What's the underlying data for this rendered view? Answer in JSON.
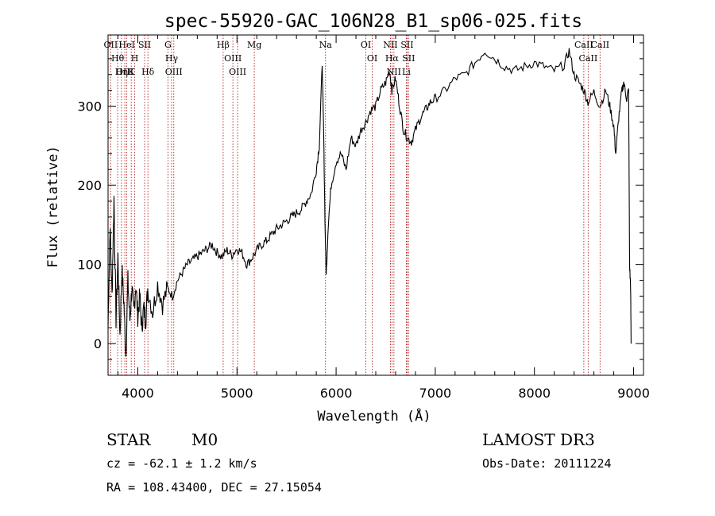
{
  "chart_data": {
    "type": "line",
    "title": "spec-55920-GAC_106N28_B1_sp06-025.fits",
    "xlabel": "Wavelength (Å)",
    "ylabel": "Flux (relative)",
    "xlim": [
      3700,
      9100
    ],
    "ylim": [
      -40,
      390
    ],
    "xticks": [
      4000,
      5000,
      6000,
      7000,
      8000,
      9000
    ],
    "yticks": [
      0,
      100,
      200,
      300
    ],
    "series": [
      {
        "name": "flux",
        "points": [
          [
            3700,
            20
          ],
          [
            3720,
            150
          ],
          [
            3740,
            60
          ],
          [
            3760,
            185
          ],
          [
            3780,
            30
          ],
          [
            3800,
            110
          ],
          [
            3820,
            10
          ],
          [
            3840,
            95
          ],
          [
            3860,
            50
          ],
          [
            3880,
            -15
          ],
          [
            3900,
            80
          ],
          [
            3920,
            30
          ],
          [
            3940,
            70
          ],
          [
            3960,
            40
          ],
          [
            3980,
            75
          ],
          [
            4000,
            35
          ],
          [
            4020,
            60
          ],
          [
            4040,
            20
          ],
          [
            4060,
            45
          ],
          [
            4080,
            30
          ],
          [
            4100,
            70
          ],
          [
            4150,
            40
          ],
          [
            4200,
            75
          ],
          [
            4250,
            50
          ],
          [
            4300,
            70
          ],
          [
            4350,
            60
          ],
          [
            4400,
            80
          ],
          [
            4450,
            90
          ],
          [
            4500,
            100
          ],
          [
            4550,
            105
          ],
          [
            4600,
            110
          ],
          [
            4650,
            115
          ],
          [
            4700,
            120
          ],
          [
            4750,
            125
          ],
          [
            4800,
            115
          ],
          [
            4850,
            110
          ],
          [
            4900,
            118
          ],
          [
            4950,
            112
          ],
          [
            5000,
            120
          ],
          [
            5050,
            115
          ],
          [
            5100,
            100
          ],
          [
            5150,
            108
          ],
          [
            5200,
            118
          ],
          [
            5250,
            125
          ],
          [
            5300,
            130
          ],
          [
            5350,
            138
          ],
          [
            5400,
            145
          ],
          [
            5450,
            150
          ],
          [
            5500,
            155
          ],
          [
            5550,
            160
          ],
          [
            5600,
            165
          ],
          [
            5650,
            170
          ],
          [
            5700,
            180
          ],
          [
            5750,
            190
          ],
          [
            5800,
            220
          ],
          [
            5830,
            250
          ],
          [
            5860,
            355
          ],
          [
            5875,
            260
          ],
          [
            5890,
            140
          ],
          [
            5900,
            85
          ],
          [
            5920,
            150
          ],
          [
            5950,
            200
          ],
          [
            6000,
            230
          ],
          [
            6050,
            240
          ],
          [
            6100,
            220
          ],
          [
            6150,
            260
          ],
          [
            6200,
            250
          ],
          [
            6250,
            270
          ],
          [
            6300,
            280
          ],
          [
            6350,
            295
          ],
          [
            6400,
            300
          ],
          [
            6450,
            320
          ],
          [
            6500,
            330
          ],
          [
            6540,
            345
          ],
          [
            6563,
            320
          ],
          [
            6600,
            335
          ],
          [
            6640,
            300
          ],
          [
            6680,
            270
          ],
          [
            6720,
            260
          ],
          [
            6760,
            255
          ],
          [
            6800,
            270
          ],
          [
            6850,
            285
          ],
          [
            6900,
            295
          ],
          [
            6950,
            305
          ],
          [
            7000,
            310
          ],
          [
            7100,
            320
          ],
          [
            7200,
            335
          ],
          [
            7300,
            340
          ],
          [
            7400,
            355
          ],
          [
            7500,
            370
          ],
          [
            7600,
            360
          ],
          [
            7700,
            350
          ],
          [
            7800,
            345
          ],
          [
            7900,
            350
          ],
          [
            8000,
            355
          ],
          [
            8100,
            350
          ],
          [
            8200,
            345
          ],
          [
            8300,
            352
          ],
          [
            8350,
            370
          ],
          [
            8400,
            340
          ],
          [
            8450,
            330
          ],
          [
            8500,
            320
          ],
          [
            8540,
            305
          ],
          [
            8600,
            318
          ],
          [
            8660,
            300
          ],
          [
            8720,
            320
          ],
          [
            8760,
            300
          ],
          [
            8800,
            275
          ],
          [
            8820,
            240
          ],
          [
            8850,
            285
          ],
          [
            8880,
            318
          ],
          [
            8900,
            330
          ],
          [
            8930,
            310
          ],
          [
            8950,
            320
          ],
          [
            8960,
            100
          ],
          [
            8970,
            70
          ],
          [
            8975,
            0
          ]
        ]
      }
    ],
    "lines": [
      {
        "name": "Hθ",
        "wavelength": 3797
      },
      {
        "name": "OII",
        "wavelength": 3727
      },
      {
        "name": "OIII",
        "wavelength": 3869
      },
      {
        "name": "Hη",
        "wavelength": 3835
      },
      {
        "name": "HeI",
        "wavelength": 3889
      },
      {
        "name": "K",
        "wavelength": 3934
      },
      {
        "name": "H",
        "wavelength": 3969
      },
      {
        "name": "SII",
        "wavelength": 4069
      },
      {
        "name": "Hδ",
        "wavelength": 4102
      },
      {
        "name": "G",
        "wavelength": 4304
      },
      {
        "name": "OIII",
        "wavelength": 4363
      },
      {
        "name": "Hγ",
        "wavelength": 4341
      },
      {
        "name": "Hβ",
        "wavelength": 4861
      },
      {
        "name": "OIII",
        "wavelength": 4959
      },
      {
        "name": "OIII",
        "wavelength": 5007
      },
      {
        "name": "Mg",
        "wavelength": 5175
      },
      {
        "name": "Na",
        "wavelength": 5893
      },
      {
        "name": "OI",
        "wavelength": 6300
      },
      {
        "name": "OI",
        "wavelength": 6364
      },
      {
        "name": "NII",
        "wavelength": 6548
      },
      {
        "name": "Hα",
        "wavelength": 6563
      },
      {
        "name": "NII",
        "wavelength": 6583
      },
      {
        "name": "Li",
        "wavelength": 6708
      },
      {
        "name": "SII",
        "wavelength": 6716
      },
      {
        "name": "SII",
        "wavelength": 6731
      },
      {
        "name": "CaII",
        "wavelength": 8498
      },
      {
        "name": "CaII",
        "wavelength": 8542
      },
      {
        "name": "CaII",
        "wavelength": 8662
      }
    ]
  },
  "info": {
    "class_label": "STAR",
    "subclass": "M0",
    "survey": "LAMOST DR3",
    "cz": "cz = -62.1 ± 1.2 km/s",
    "obs_date": "Obs-Date: 20111224",
    "coords": "RA = 108.43400, DEC =  27.15054"
  },
  "colors": {
    "line_marker": "#b22222",
    "spectrum": "#000000"
  }
}
